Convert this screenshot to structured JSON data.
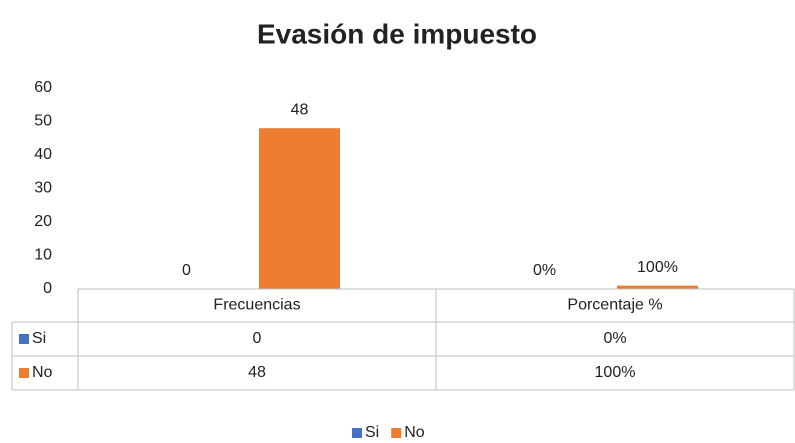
{
  "chart_data": {
    "type": "bar",
    "title": "Evasión de impuesto",
    "categories": [
      "Frecuencias",
      "Porcentaje %"
    ],
    "series": [
      {
        "name": "Si",
        "color": "#4472c4",
        "values": [
          0,
          0
        ],
        "value_labels": [
          "0",
          "0%"
        ]
      },
      {
        "name": "No",
        "color": "#ed7d31",
        "values": [
          48,
          1
        ],
        "value_labels": [
          "48",
          "100%"
        ]
      }
    ],
    "ylim": [
      0,
      60
    ],
    "yticks": [
      0,
      10,
      20,
      30,
      40,
      50,
      60
    ],
    "legend": "bottom",
    "data_table": true
  }
}
